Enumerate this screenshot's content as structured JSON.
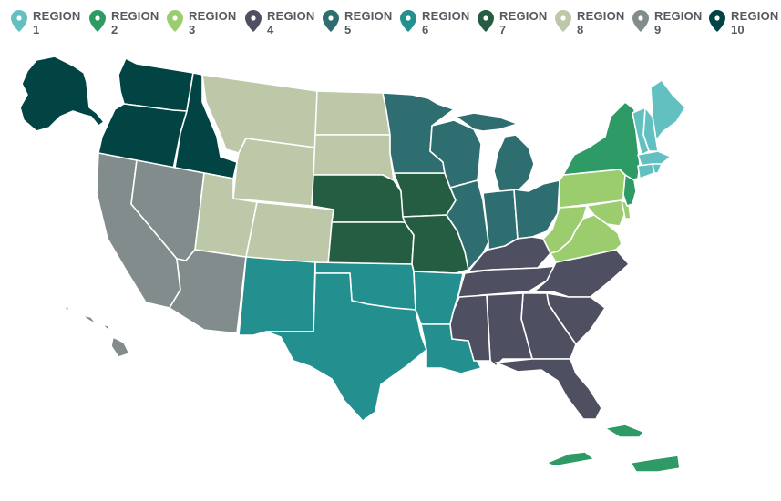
{
  "legend": [
    {
      "word": "REGION",
      "num": "1",
      "color": "#62c1c0",
      "icon": "map-pin-icon"
    },
    {
      "word": "REGION",
      "num": "2",
      "color": "#2e9b66",
      "icon": "map-pin-icon"
    },
    {
      "word": "REGION",
      "num": "3",
      "color": "#9bcc6d",
      "icon": "map-pin-icon"
    },
    {
      "word": "REGION",
      "num": "4",
      "color": "#4e5061",
      "icon": "map-pin-icon"
    },
    {
      "word": "REGION",
      "num": "5",
      "color": "#2f6e70",
      "icon": "map-pin-icon"
    },
    {
      "word": "REGION",
      "num": "6",
      "color": "#23908f",
      "icon": "map-pin-icon"
    },
    {
      "word": "REGION",
      "num": "7",
      "color": "#245d41",
      "icon": "map-pin-icon"
    },
    {
      "word": "REGION",
      "num": "8",
      "color": "#bcc8a8",
      "icon": "map-pin-icon"
    },
    {
      "word": "REGION",
      "num": "9",
      "color": "#838c8c",
      "icon": "map-pin-icon"
    },
    {
      "word": "REGION",
      "num": "10",
      "color": "#024444",
      "icon": "map-pin-icon"
    }
  ],
  "regions": {
    "1": [
      "ME",
      "NH",
      "VT",
      "MA",
      "RI",
      "CT"
    ],
    "2": [
      "NY",
      "NJ",
      "PR",
      "VI"
    ],
    "3": [
      "PA",
      "DE",
      "MD",
      "VA",
      "WV",
      "DC"
    ],
    "4": [
      "KY",
      "TN",
      "NC",
      "SC",
      "GA",
      "FL",
      "AL",
      "MS"
    ],
    "5": [
      "MN",
      "WI",
      "IL",
      "IN",
      "MI",
      "OH"
    ],
    "6": [
      "NM",
      "TX",
      "OK",
      "AR",
      "LA"
    ],
    "7": [
      "NE",
      "IA",
      "KS",
      "MO"
    ],
    "8": [
      "MT",
      "ND",
      "SD",
      "WY",
      "UT",
      "CO"
    ],
    "9": [
      "CA",
      "NV",
      "AZ",
      "HI"
    ],
    "10": [
      "WA",
      "OR",
      "ID",
      "AK"
    ]
  }
}
